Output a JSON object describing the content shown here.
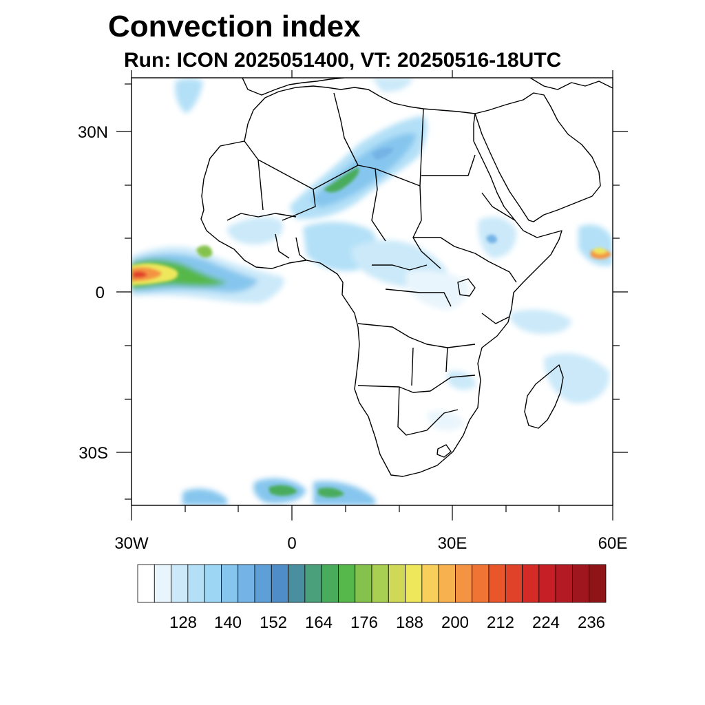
{
  "title": "Convection index",
  "subtitle": "Run: ICON 2025051400,  VT: 20250516-18UTC",
  "axes": {
    "lat_labels": [
      "30N",
      "0",
      "30S"
    ],
    "lon_labels": [
      "30W",
      "0",
      "30E",
      "60E"
    ]
  },
  "colorbar": {
    "labels": [
      "128",
      "140",
      "152",
      "164",
      "176",
      "188",
      "200",
      "212",
      "224",
      "236"
    ],
    "colors": [
      "#ffffff",
      "#e9f5fc",
      "#cbe9f9",
      "#b3e0f7",
      "#9dd5f4",
      "#86c6ee",
      "#74b3e6",
      "#5e9fd8",
      "#4f8dc8",
      "#4a8fa0",
      "#4aa07a",
      "#49ac5c",
      "#56b84a",
      "#85c24d",
      "#a8ce52",
      "#cfd957",
      "#eee75c",
      "#f9cf5b",
      "#f7b24f",
      "#f49442",
      "#f07535",
      "#e9562c",
      "#e04129",
      "#d52b27",
      "#c62026",
      "#b31a23",
      "#a0161f",
      "#8e1418"
    ]
  },
  "map": {
    "region": "Africa",
    "lon_range": [
      -30,
      60
    ],
    "lat_range": [
      -40,
      40
    ]
  }
}
